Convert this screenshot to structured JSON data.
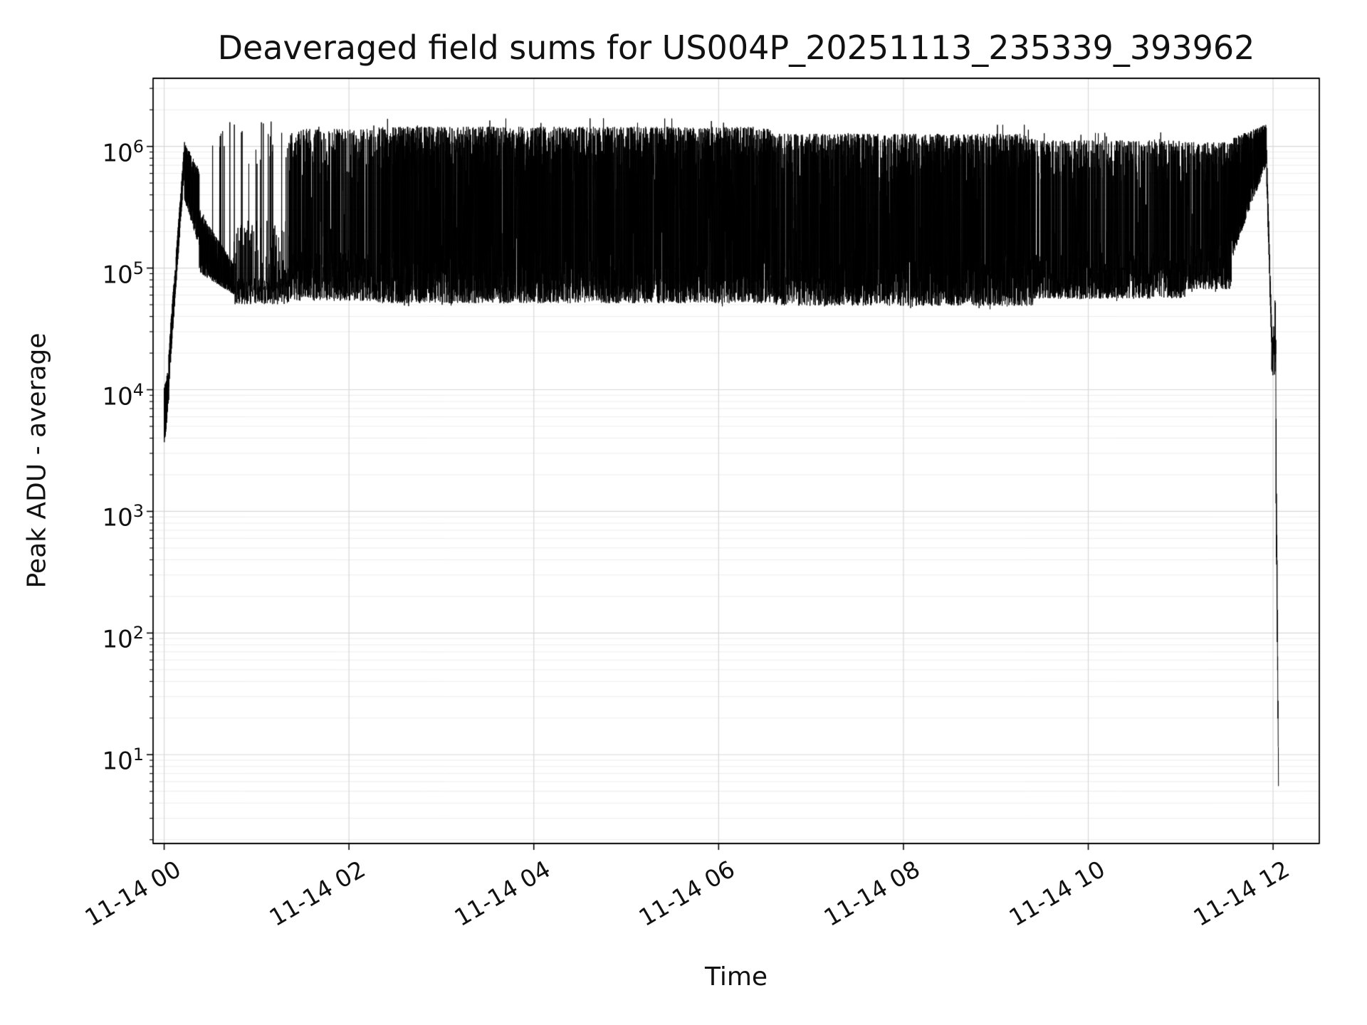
{
  "figure": {
    "title": "Deaveraged field sums for US004P_20251113_235339_393962",
    "xlabel": "Time",
    "ylabel": "Peak ADU - average"
  },
  "chart_data": {
    "type": "line",
    "title": "Deaveraged field sums for US004P_20251113_235339_393962",
    "xlabel": "Time",
    "ylabel": "Peak ADU - average",
    "summary": "Dense black noisy log-scale time series: rapid rise near 11-14 00 from ~3e3 to ~1e6, thick noisy band oscillating between ~5e4 and ~2e6 until ~11-14 11:30, envelope rises to ~1e6 then plunges to ~4 just after 11-14 12.",
    "x_axis": {
      "unit": "hours since 2025-11-14 00:00",
      "lim": [
        -0.12,
        12.5
      ],
      "ticks": [
        {
          "t": 0,
          "label": "11-14 00"
        },
        {
          "t": 2,
          "label": "11-14 02"
        },
        {
          "t": 4,
          "label": "11-14 04"
        },
        {
          "t": 6,
          "label": "11-14 06"
        },
        {
          "t": 8,
          "label": "11-14 08"
        },
        {
          "t": 10,
          "label": "11-14 10"
        },
        {
          "t": 12,
          "label": "11-14 12"
        }
      ]
    },
    "y_axis": {
      "scale": "log",
      "lim_log10": [
        0.27,
        6.56
      ],
      "tick_base": "10",
      "tick_exponents": [
        1,
        2,
        3,
        4,
        5,
        6
      ]
    },
    "grid": {
      "major_color": "#d7d7d7",
      "minor_color": "#ececec",
      "on": true
    },
    "line_color": "#000000",
    "line_width": 1,
    "frame_color": "#000000",
    "points_per_hour": 640,
    "noise_seed": 1337,
    "envelope_segments": [
      {
        "t0": 0.0,
        "t1": 0.05,
        "mode": "dense",
        "lo0": 3.5,
        "hi0": 4.05,
        "lo1": 3.9,
        "hi1": 4.2
      },
      {
        "t0": 0.05,
        "t1": 0.22,
        "mode": "dense",
        "lo0": 4.0,
        "hi0": 4.35,
        "lo1": 5.8,
        "hi1": 6.05
      },
      {
        "t0": 0.22,
        "t1": 0.38,
        "mode": "dense",
        "lo0": 5.55,
        "hi0": 6.05,
        "lo1": 5.15,
        "hi1": 5.85,
        "sp": 0.02,
        "sh": 6.2
      },
      {
        "t0": 0.38,
        "t1": 0.75,
        "mode": "dense",
        "lo0": 4.95,
        "hi0": 5.5,
        "lo1": 4.78,
        "hi1": 5.05,
        "sp": 0.03,
        "sh": 6.25
      },
      {
        "t0": 0.75,
        "t1": 1.35,
        "mode": "sparse",
        "lo0": 4.7,
        "hi0": 4.92,
        "sp": 0.055,
        "sh": 6.25
      },
      {
        "t0": 1.35,
        "t1": 2.3,
        "mode": "dense",
        "lo0": 4.7,
        "hi0": 6.22,
        "gap": 0.35
      },
      {
        "t0": 2.3,
        "t1": 6.6,
        "mode": "dense",
        "lo0": 4.68,
        "hi0": 6.24,
        "gap": 0.1
      },
      {
        "t0": 6.6,
        "t1": 9.4,
        "mode": "dense",
        "lo0": 4.66,
        "hi0": 6.18,
        "gap": 0.14
      },
      {
        "t0": 9.4,
        "t1": 11.05,
        "mode": "dense",
        "lo0": 4.72,
        "hi0": 6.12,
        "gap": 0.3
      },
      {
        "t0": 11.05,
        "t1": 11.55,
        "mode": "dense",
        "lo0": 4.8,
        "hi0": 6.1,
        "gap": 0.25
      },
      {
        "t0": 11.55,
        "t1": 11.93,
        "mode": "dense",
        "lo0": 5.05,
        "hi0": 6.12,
        "lo1": 5.85,
        "hi1": 6.2
      },
      {
        "t0": 11.93,
        "t1": 11.985,
        "mode": "dense",
        "lo0": 5.7,
        "hi0": 6.0,
        "lo1": 4.3,
        "hi1": 4.55
      },
      {
        "t0": 11.985,
        "t1": 12.03,
        "mode": "sparse",
        "lo0": 4.1,
        "hi0": 4.45,
        "sp": 0,
        "sh": 0
      },
      {
        "t0": 12.03,
        "t1": 12.06,
        "mode": "dense",
        "lo0": 3.0,
        "hi0": 4.2,
        "lo1": 0.6,
        "hi1": 0.75
      }
    ]
  }
}
